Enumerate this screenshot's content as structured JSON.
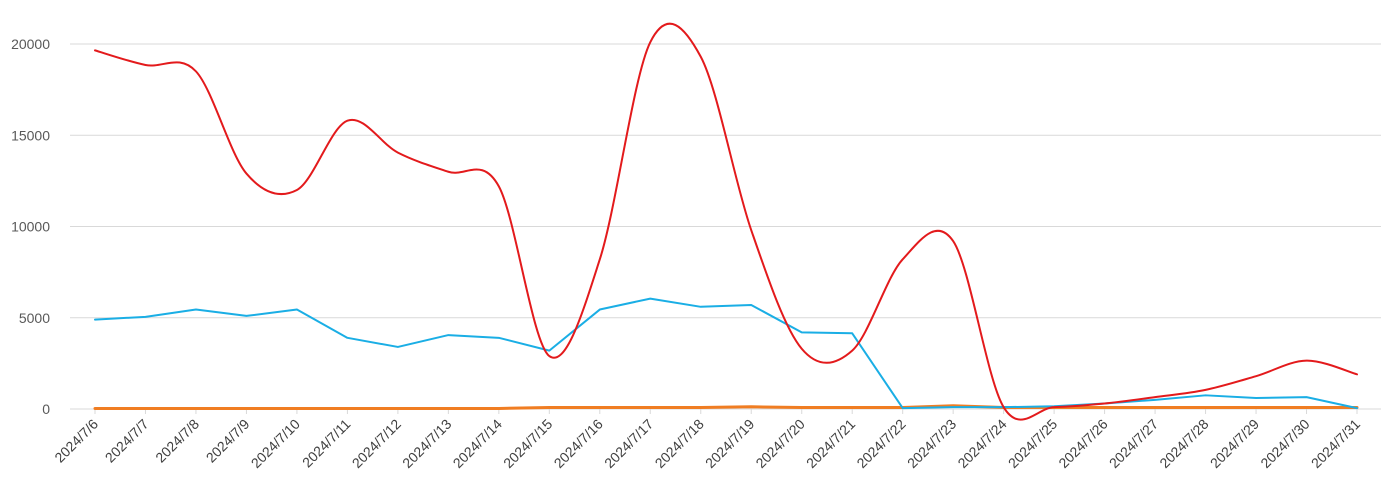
{
  "chart_data": {
    "type": "line",
    "title": "",
    "xlabel": "",
    "ylabel": "",
    "ylim": [
      0,
      20000
    ],
    "yticks": [
      "0",
      "5000",
      "10000",
      "15000",
      "20000"
    ],
    "grid": true,
    "legend": "none",
    "categories": [
      "2024/7/6",
      "2024/7/7",
      "2024/7/8",
      "2024/7/9",
      "2024/7/10",
      "2024/7/11",
      "2024/7/12",
      "2024/7/13",
      "2024/7/14",
      "2024/7/15",
      "2024/7/16",
      "2024/7/17",
      "2024/7/18",
      "2024/7/19",
      "2024/7/20",
      "2024/7/21",
      "2024/7/22",
      "2024/7/23",
      "2024/7/24",
      "2024/7/25",
      "2024/7/26",
      "2024/7/27",
      "2024/7/28",
      "2024/7/29",
      "2024/7/30",
      "2024/7/31"
    ],
    "series": [
      {
        "color": "#e31a1c",
        "smooth": true,
        "values": [
          19650,
          18850,
          18500,
          12900,
          12000,
          15800,
          14050,
          13000,
          12200,
          2900,
          8200,
          20100,
          19300,
          9800,
          3300,
          3200,
          8200,
          9200,
          100,
          100,
          300,
          650,
          1050,
          1800,
          2650,
          1900
        ]
      },
      {
        "color": "#1aaee5",
        "smooth": false,
        "values": [
          4900,
          5050,
          5450,
          5100,
          5450,
          3900,
          3400,
          4050,
          3900,
          3200,
          5450,
          6050,
          5600,
          5700,
          4200,
          4150,
          50,
          100,
          100,
          150,
          300,
          500,
          750,
          600,
          650,
          50
        ]
      },
      {
        "color": "#f07d22",
        "smooth": false,
        "values": [
          30,
          30,
          30,
          30,
          30,
          30,
          30,
          30,
          30,
          80,
          80,
          80,
          80,
          120,
          80,
          80,
          80,
          180,
          80,
          80,
          80,
          80,
          80,
          80,
          80,
          80
        ]
      }
    ]
  }
}
